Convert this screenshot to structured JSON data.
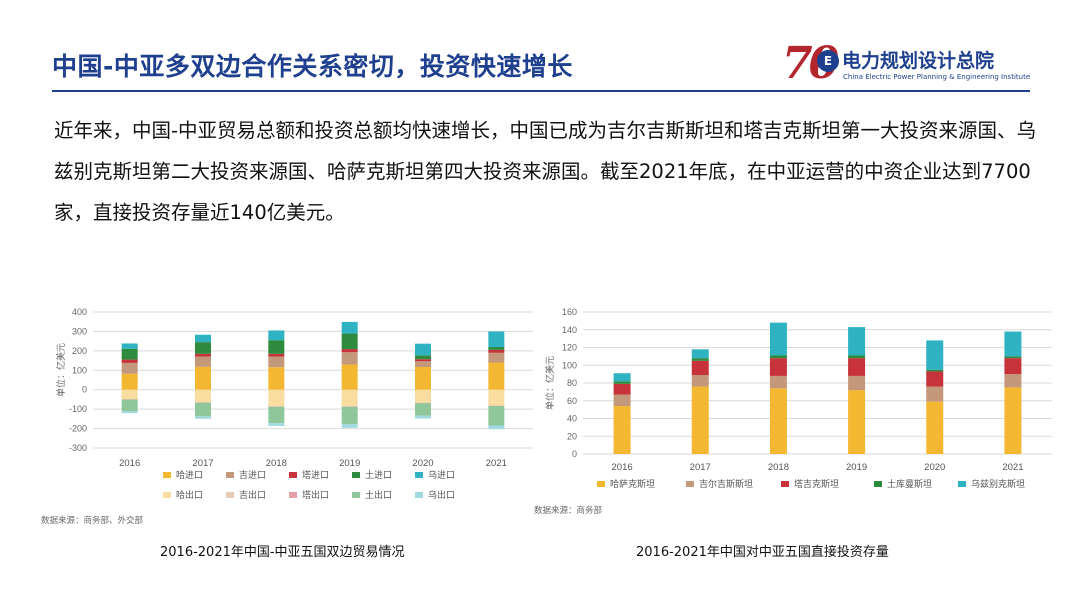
{
  "header": {
    "title": "中国-中亚多双边合作关系密切，投资快速增长",
    "logo_number": "70",
    "logo_badge": "E",
    "logo_cn": "电力规划设计总院",
    "logo_en": "China Electric Power Planning & Engineering Institute"
  },
  "body_text": "近年来，中国-中亚贸易总额和投资总额均快速增长，中国已成为吉尔吉斯斯坦和塔吉克斯坦第一大投资来源国、乌兹别克斯坦第二大投资来源国、哈萨克斯坦第四大投资来源国。截至2021年底，在中亚运营的中资企业达到7700家，直接投资存量近140亿美元。",
  "colors": {
    "kz": "#f3b731",
    "kg": "#c4987a",
    "tj": "#c8323a",
    "tm": "#2e8b3e",
    "uz": "#2fb3c3",
    "kz_light": "#f9dca0",
    "kg_light": "#e3cbb8",
    "tj_light": "#e7a0a4",
    "tm_light": "#8fc79a",
    "uz_light": "#9fd9e1"
  },
  "chart_data": [
    {
      "type": "bar",
      "stacked": true,
      "caption": "2016-2021年中国-中亚五国双边贸易情况",
      "ylabel": "单位：亿美元",
      "ylim": [
        -300,
        400
      ],
      "yticks": [
        400,
        300,
        200,
        100,
        0,
        -100,
        -200,
        -300
      ],
      "grid": true,
      "legend_position": "bottom",
      "source": "数据来源：商务部、外交部",
      "categories": [
        "2016",
        "2017",
        "2018",
        "2019",
        "2020",
        "2021"
      ],
      "series": [
        {
          "name": "哈进口",
          "color_key": "kz",
          "values": [
            82,
            118,
            116,
            130,
            117,
            140
          ]
        },
        {
          "name": "吉进口",
          "color_key": "kg",
          "values": [
            56,
            53,
            55,
            63,
            30,
            50
          ]
        },
        {
          "name": "塔进口",
          "color_key": "tj",
          "values": [
            17,
            14,
            14,
            16,
            10,
            15
          ]
        },
        {
          "name": "土进口",
          "color_key": "tm",
          "values": [
            55,
            60,
            70,
            80,
            20,
            15
          ]
        },
        {
          "name": "乌进口",
          "color_key": "uz",
          "values": [
            28,
            38,
            50,
            60,
            60,
            80
          ]
        },
        {
          "name": "哈出口",
          "color_key": "kz_light",
          "values": [
            -48,
            -64,
            -85,
            -85,
            -67,
            -82
          ]
        },
        {
          "name": "吉出口",
          "color_key": "kg_light",
          "values": [
            -2,
            -2,
            -2,
            -2,
            -1,
            -1
          ]
        },
        {
          "name": "塔出口",
          "color_key": "tj_light",
          "values": [
            -1,
            -1,
            -1,
            -1,
            -1,
            -1
          ]
        },
        {
          "name": "土出口",
          "color_key": "tm_light",
          "values": [
            -60,
            -70,
            -84,
            -90,
            -65,
            -100
          ]
        },
        {
          "name": "乌出口",
          "color_key": "uz_light",
          "values": [
            -10,
            -13,
            -14,
            -18,
            -14,
            -19
          ]
        }
      ]
    },
    {
      "type": "bar",
      "stacked": true,
      "caption": "2016-2021年中国对中亚五国直接投资存量",
      "ylabel": "单位：亿美元",
      "ylim": [
        0,
        160
      ],
      "yticks": [
        160,
        140,
        120,
        100,
        80,
        60,
        40,
        20,
        0
      ],
      "grid": true,
      "legend_position": "bottom",
      "source": "数据来源：商务部",
      "categories": [
        "2016",
        "2017",
        "2018",
        "2019",
        "2020",
        "2021"
      ],
      "series": [
        {
          "name": "哈萨克斯坦",
          "color_key": "kz",
          "values": [
            54,
            76,
            74,
            72,
            59,
            75
          ]
        },
        {
          "name": "吉尔吉斯斯坦",
          "color_key": "kg",
          "values": [
            13,
            13,
            14,
            16,
            17,
            15
          ]
        },
        {
          "name": "塔吉克斯坦",
          "color_key": "tj",
          "values": [
            12,
            16,
            20,
            20,
            17,
            18
          ]
        },
        {
          "name": "土库曼斯坦",
          "color_key": "tm",
          "values": [
            3,
            3,
            3,
            3,
            2,
            2
          ]
        },
        {
          "name": "乌兹别克斯坦",
          "color_key": "uz",
          "values": [
            9,
            10,
            37,
            32,
            33,
            28
          ]
        }
      ]
    }
  ]
}
